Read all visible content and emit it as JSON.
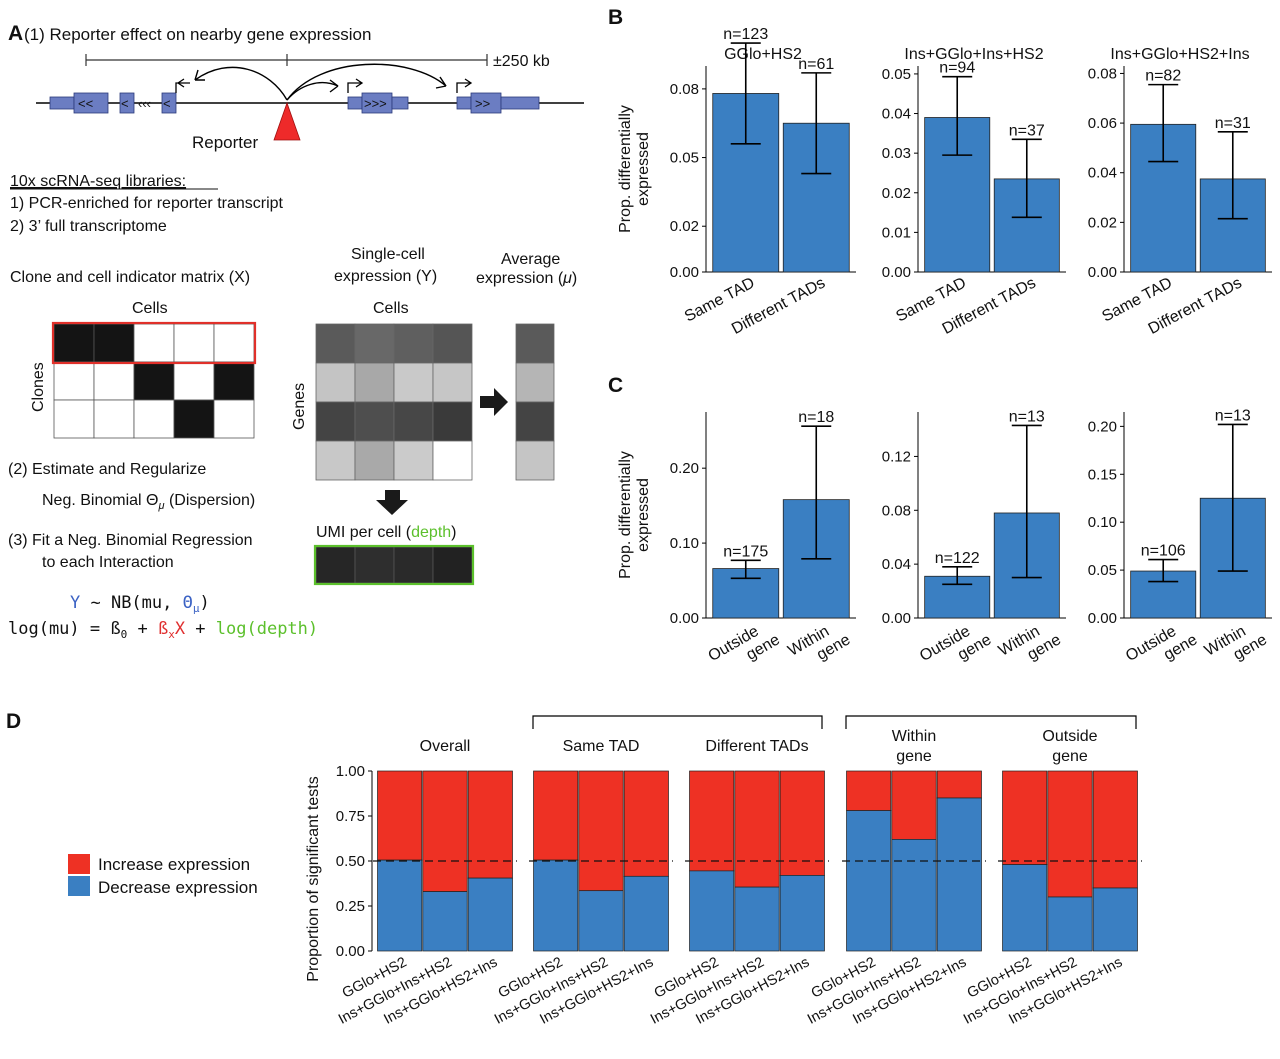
{
  "colors": {
    "bar_blue": "#3a7fc2",
    "increase_red": "#ee3124",
    "decrease_blue": "#3a7fc2",
    "gene_blue": "#6b7dc2",
    "reporter_red": "#ee2a2a",
    "theta_blue": "#3b62c4",
    "beta_red": "#e03030",
    "depth_green": "#5cc02c"
  },
  "panel_labels": {
    "a": "A",
    "b": "B",
    "c": "C",
    "d": "D"
  },
  "panel_a": {
    "step1": "(1) Reporter effect on nearby gene expression",
    "window": "±250 kb",
    "reporter": "Reporter",
    "gene_arrows_left": "<<",
    "gene_arrows_left2": "<",
    "gene_arrows_right": ">>>",
    "gene_arrows_right2": ">>",
    "lib_title": "10x scRNA-seq libraries:",
    "lib1": "1) PCR-enriched for reporter transcript",
    "lib2": "2) 3’ full transcriptome",
    "matrix_x_title": "Clone and cell indicator matrix (X)",
    "cells_label": "Cells",
    "clones_label": "Clones",
    "sc_title_line1": "Single-cell",
    "sc_title_line2": "expression (Y)",
    "avg_title_line1": "Average",
    "avg_title_line2": "expression (",
    "mu": "μ",
    "avg_title_close": ")",
    "genes_label": "Genes",
    "umi_label": "UMI per cell (",
    "umi_depth": "depth",
    "umi_close": ")",
    "step2": "(2) Estimate and Regularize",
    "step2b": "Neg. Binomial Θ",
    "step2b_sub": "μ",
    "step2b_tail": " (Dispersion)",
    "step3": "(3) Fit a Neg. Binomial Regression",
    "step3b": "to each Interaction",
    "eq1_y": "Y",
    "eq1_mid": " ~ NB(mu, ",
    "eq1_theta": "Θ",
    "eq1_theta_sub": "μ",
    "eq1_close": ")",
    "eq2_left": "log(mu) = ß",
    "eq2_sub0": "0",
    "eq2_plus1": " + ",
    "eq2_beta": "ß",
    "eq2_subx": "x",
    "eq2_X": "X",
    "eq2_plus2": " + ",
    "eq2_depth": "log(depth)",
    "matrix_x": [
      [
        1,
        1,
        0,
        0,
        0
      ],
      [
        0,
        0,
        1,
        0,
        1
      ],
      [
        0,
        0,
        0,
        1,
        0
      ]
    ],
    "matrix_y": [
      [
        "#5a5a5a",
        "#686868",
        "#5f5f5f",
        "#555555"
      ],
      [
        "#c4c4c4",
        "#a8a8a8",
        "#c9c9c9",
        "#c6c6c6"
      ],
      [
        "#444444",
        "#4e4e4e",
        "#474747",
        "#3a3a3a"
      ],
      [
        "#c8c8c8",
        "#a9a9a9",
        "#cbcbcb",
        "#ffffff"
      ]
    ],
    "avg_col": [
      "#5a5a5a",
      "#b5b5b5",
      "#444444",
      "#c5c5c5"
    ],
    "umi_row": [
      "#262626",
      "#2e2e2e",
      "#2a2a2a",
      "#222222"
    ]
  },
  "chart_data": [
    {
      "panel": "B",
      "type": "bar",
      "title": "GGlo+HS2",
      "ylabel": "Prop. differentially expressed",
      "categories": [
        "Same TAD",
        "Different TADs"
      ],
      "values": [
        0.078,
        0.065
      ],
      "err_low": [
        0.056,
        0.043
      ],
      "err_high": [
        0.1,
        0.087
      ],
      "n_labels": [
        "n=123",
        "n=61"
      ],
      "ylim": [
        0,
        0.09
      ],
      "yticks": [
        0.0,
        0.02,
        0.05,
        0.08
      ],
      "ytick_labels": [
        "0.00",
        "0.02",
        "0.05",
        "0.08"
      ]
    },
    {
      "panel": "B",
      "type": "bar",
      "title": "Ins+GGlo+Ins+HS2",
      "categories": [
        "Same TAD",
        "Different TADs"
      ],
      "values": [
        0.039,
        0.0235
      ],
      "err_low": [
        0.0295,
        0.0138
      ],
      "err_high": [
        0.0493,
        0.0335
      ],
      "n_labels": [
        "n=94",
        "n=37"
      ],
      "ylim": [
        0,
        0.052
      ],
      "yticks": [
        0.0,
        0.01,
        0.02,
        0.03,
        0.04,
        0.05
      ],
      "ytick_labels": [
        "0.00",
        "0.01",
        "0.02",
        "0.03",
        "0.04",
        "0.05"
      ]
    },
    {
      "panel": "B",
      "type": "bar",
      "title": "Ins+GGlo+HS2+Ins",
      "categories": [
        "Same TAD",
        "Different TADs"
      ],
      "values": [
        0.0595,
        0.0375
      ],
      "err_low": [
        0.0445,
        0.0215
      ],
      "err_high": [
        0.0755,
        0.0565
      ],
      "n_labels": [
        "n=82",
        "n=31"
      ],
      "ylim": [
        0,
        0.083
      ],
      "yticks": [
        0.0,
        0.02,
        0.04,
        0.06,
        0.08
      ],
      "ytick_labels": [
        "0.00",
        "0.02",
        "0.04",
        "0.06",
        "0.08"
      ]
    },
    {
      "panel": "C",
      "type": "bar",
      "title": "",
      "ylabel": "Prop. differentially expressed",
      "categories": [
        "Outside gene",
        "Within gene"
      ],
      "values": [
        0.066,
        0.158
      ],
      "err_low": [
        0.053,
        0.079
      ],
      "err_high": [
        0.077,
        0.256
      ],
      "n_labels": [
        "n=175",
        "n=18"
      ],
      "ylim": [
        0,
        0.275
      ],
      "yticks": [
        0.0,
        0.1,
        0.2
      ],
      "ytick_labels": [
        "0.00",
        "0.10",
        "0.20"
      ]
    },
    {
      "panel": "C",
      "type": "bar",
      "title": "",
      "categories": [
        "Outside gene",
        "Within gene"
      ],
      "values": [
        0.031,
        0.078
      ],
      "err_low": [
        0.025,
        0.03
      ],
      "err_high": [
        0.038,
        0.143
      ],
      "n_labels": [
        "n=122",
        "n=13"
      ],
      "ylim": [
        0,
        0.153
      ],
      "yticks": [
        0.0,
        0.04,
        0.08,
        0.12
      ],
      "ytick_labels": [
        "0.00",
        "0.04",
        "0.08",
        "0.12"
      ]
    },
    {
      "panel": "C",
      "type": "bar",
      "title": "",
      "categories": [
        "Outside gene",
        "Within gene"
      ],
      "values": [
        0.049,
        0.125
      ],
      "err_low": [
        0.038,
        0.049
      ],
      "err_high": [
        0.061,
        0.202
      ],
      "n_labels": [
        "n=106",
        "n=13"
      ],
      "ylim": [
        0,
        0.215
      ],
      "yticks": [
        0.0,
        0.05,
        0.1,
        0.15,
        0.2
      ],
      "ytick_labels": [
        "0.00",
        "0.05",
        "0.10",
        "0.15",
        "0.20"
      ]
    },
    {
      "panel": "D",
      "type": "bar",
      "stacked": true,
      "ylabel": "Proportion of significant tests",
      "ylim": [
        0,
        1
      ],
      "yticks": [
        0,
        0.25,
        0.5,
        0.75,
        1.0
      ],
      "ytick_labels": [
        "0.00",
        "0.25",
        "0.50",
        "0.75",
        "1.00"
      ],
      "reference_line": 0.5,
      "categories": [
        "GGlo+HS2",
        "Ins+GGlo+Ins+HS2",
        "Ins+GGlo+HS2+Ins"
      ],
      "legend": [
        "Increase expression",
        "Decrease expression"
      ],
      "group_brackets": [
        {
          "spans": [
            1,
            2
          ],
          "label": ""
        },
        {
          "spans": [
            3,
            4
          ],
          "label": ""
        }
      ],
      "facets": [
        {
          "title_lines": [
            "Overall"
          ],
          "decrease": [
            0.505,
            0.33,
            0.405
          ]
        },
        {
          "title_lines": [
            "Same TAD"
          ],
          "decrease": [
            0.505,
            0.335,
            0.415
          ]
        },
        {
          "title_lines": [
            "Different TADs"
          ],
          "decrease": [
            0.445,
            0.355,
            0.42
          ]
        },
        {
          "title_lines": [
            "Within",
            "gene"
          ],
          "decrease": [
            0.78,
            0.62,
            0.85
          ]
        },
        {
          "title_lines": [
            "Outside",
            "gene"
          ],
          "decrease": [
            0.48,
            0.3,
            0.35
          ]
        }
      ]
    }
  ]
}
